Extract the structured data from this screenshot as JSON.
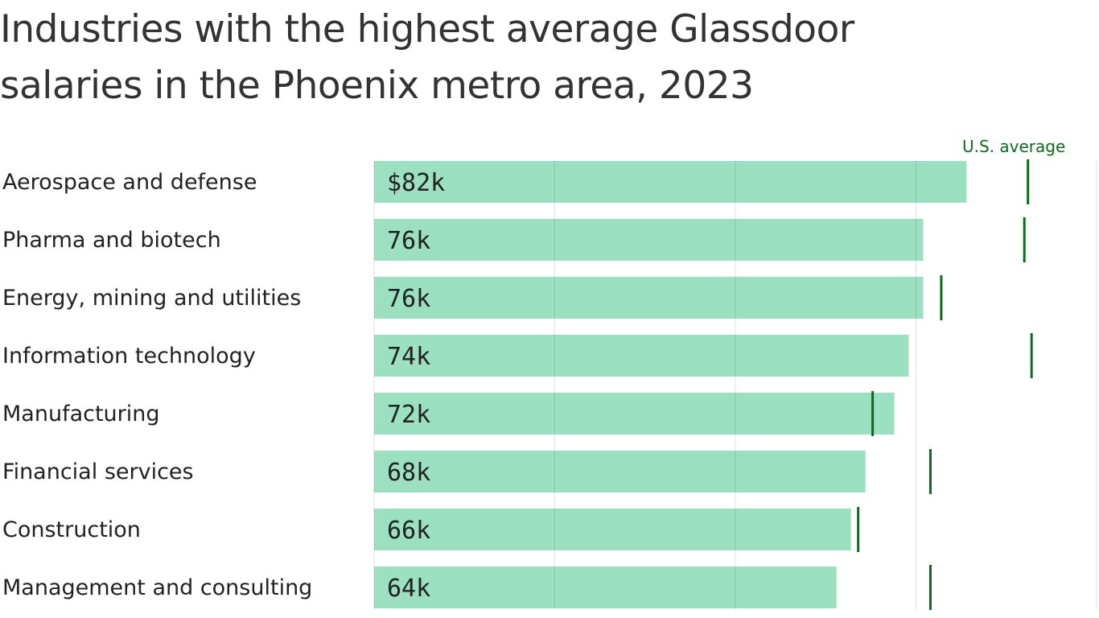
{
  "chart_data": {
    "type": "bar",
    "orientation": "horizontal",
    "title": "Industries with the highest average Glassdoor salaries in the Phoenix metro area, 2023",
    "categories": [
      "Aerospace and defense",
      "Pharma and biotech",
      "Energy, mining and utilities",
      "Information technology",
      "Manufacturing",
      "Financial services",
      "Construction",
      "Management and consulting"
    ],
    "value_labels": [
      "$82k",
      "76k",
      "76k",
      "74k",
      "72k",
      "68k",
      "66k",
      "64k"
    ],
    "series": [
      {
        "values": [
          82,
          76,
          76,
          74,
          72,
          68,
          66,
          64
        ],
        "color": "#9be0c0"
      },
      {
        "name": "U.S. average",
        "type": "marker",
        "values": [
          90.5,
          90,
          78.5,
          91,
          69,
          77,
          67,
          77
        ],
        "color": "#0b6b1e"
      }
    ],
    "xlim": [
      0,
      100
    ],
    "grid": true,
    "gridlines": [
      0,
      25,
      50,
      75,
      100
    ],
    "unit": "thousand USD"
  }
}
